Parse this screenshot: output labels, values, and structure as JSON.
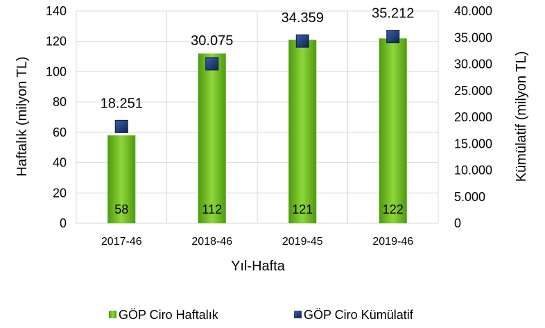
{
  "chart_data": {
    "type": "bar",
    "categories": [
      "2017-46",
      "2018-46",
      "2019-45",
      "2019-46"
    ],
    "series": [
      {
        "name": "GÖP Ciro Haftalık",
        "kind": "bar",
        "axis": "left",
        "values": [
          58,
          112,
          121,
          122
        ],
        "value_labels": [
          "58",
          "112",
          "121",
          "122"
        ],
        "color": "#6bbd1c"
      },
      {
        "name": "GÖP Ciro Kümülatif",
        "kind": "marker",
        "axis": "right",
        "values": [
          18251,
          30075,
          34359,
          35212
        ],
        "value_labels": [
          "18.251",
          "30.075",
          "34.359",
          "35.212"
        ],
        "color": "#1f3a78"
      }
    ],
    "xlabel": "Yıl-Hafta",
    "ylabel": "Haftalık (milyon TL)",
    "y2label": "Kümülatif (milyon TL)",
    "ylim": [
      0,
      140
    ],
    "y2lim": [
      0,
      40000
    ],
    "yticks": [
      "0",
      "20",
      "40",
      "60",
      "80",
      "100",
      "120",
      "140"
    ],
    "y2ticks": [
      "0",
      "5.000",
      "10.000",
      "15.000",
      "20.000",
      "25.000",
      "30.000",
      "35.000",
      "40.000"
    ],
    "grid": true,
    "legend": "bottom"
  }
}
